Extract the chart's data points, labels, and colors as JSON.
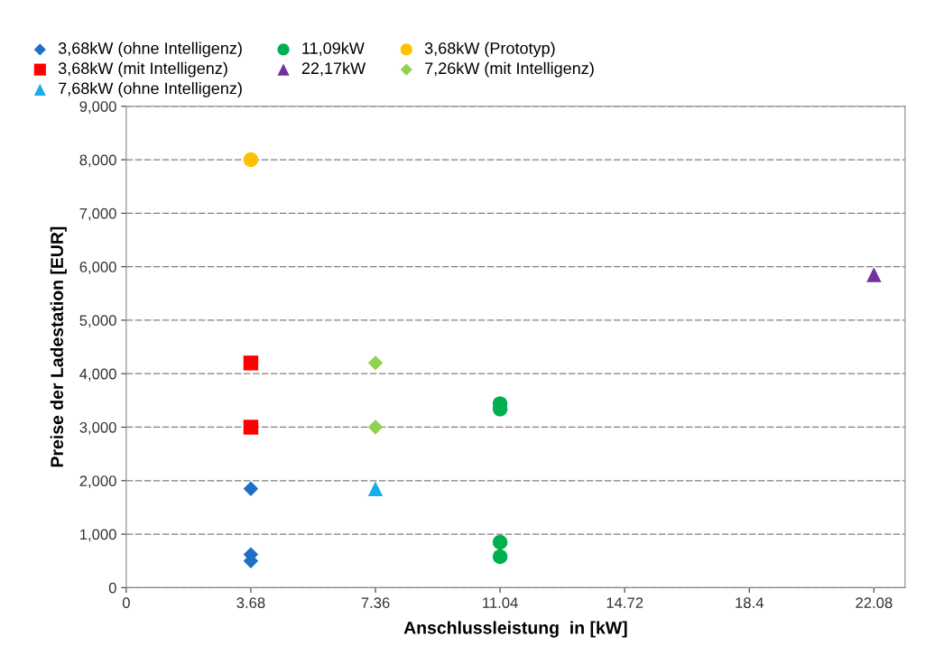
{
  "chart_data": {
    "type": "scatter",
    "xlabel": "Anschlussleistung  in [kW]",
    "ylabel": "Preise der Ladestation [EUR]",
    "xlim": [
      0,
      23
    ],
    "xticks": [
      0,
      3.68,
      7.36,
      11.04,
      14.72,
      18.4,
      22.08
    ],
    "ylim": [
      0,
      9000
    ],
    "yticks": [
      {
        "value": 0,
        "label": "0"
      },
      {
        "value": 1000,
        "label": "1,000"
      },
      {
        "value": 2000,
        "label": "2,000"
      },
      {
        "value": 3000,
        "label": "3,000"
      },
      {
        "value": 4000,
        "label": "4,000"
      },
      {
        "value": 5000,
        "label": "5,000"
      },
      {
        "value": 6000,
        "label": "6,000"
      },
      {
        "value": 7000,
        "label": "7,000"
      },
      {
        "value": 8000,
        "label": "8,000"
      },
      {
        "value": 9000,
        "label": "9,000"
      }
    ],
    "grid": "y",
    "legend": "top",
    "series": [
      {
        "name": "3,68kW (ohne Intelligenz)",
        "color": "#1f6fc5",
        "marker": "diamond",
        "x": [
          3.68,
          3.68,
          3.68
        ],
        "values": [
          1850,
          620,
          500
        ]
      },
      {
        "name": "3,68kW (mit Intelligenz)",
        "color": "#ff0000",
        "marker": "square",
        "x": [
          3.68,
          3.68
        ],
        "values": [
          4200,
          3000
        ]
      },
      {
        "name": "7,68kW (ohne Intelligenz)",
        "color": "#1aaee8",
        "marker": "triangle",
        "x": [
          7.36
        ],
        "values": [
          1850
        ]
      },
      {
        "name": "11,09kW",
        "color": "#00b050",
        "marker": "circle",
        "x": [
          11.04,
          11.04,
          11.04,
          11.04
        ],
        "values": [
          3440,
          3340,
          850,
          580
        ]
      },
      {
        "name": "22,17kW",
        "color": "#7030a0",
        "marker": "triangle",
        "x": [
          22.08
        ],
        "values": [
          5850
        ]
      },
      {
        "name": "3,68kW (Prototyp)",
        "color": "#ffc000",
        "marker": "circle",
        "x": [
          3.68
        ],
        "values": [
          8000
        ]
      },
      {
        "name": "7,26kW (mit Intelligenz)",
        "color": "#92d050",
        "marker": "diamond",
        "x": [
          7.36,
          7.36
        ],
        "values": [
          4200,
          3000
        ]
      }
    ]
  }
}
